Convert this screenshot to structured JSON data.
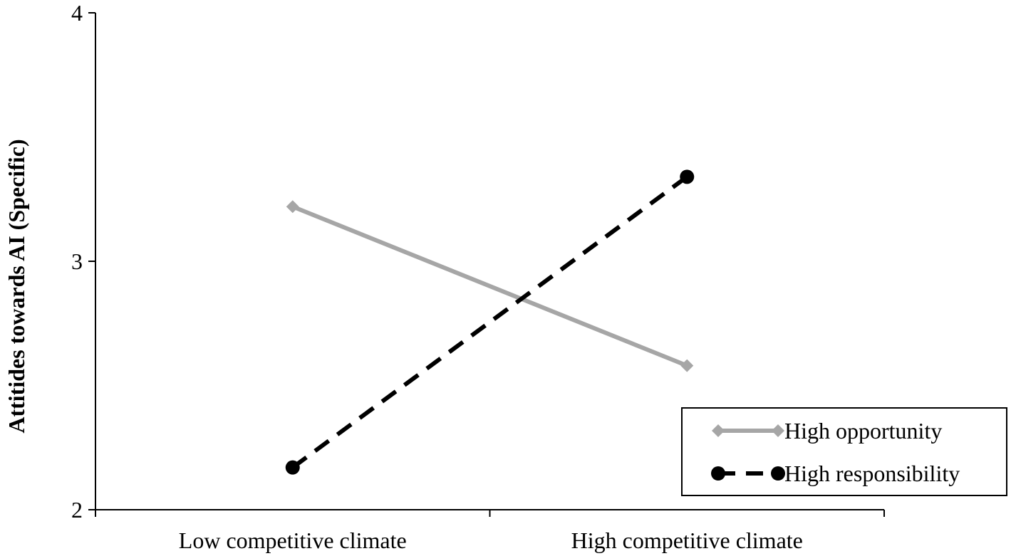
{
  "chart_data": {
    "type": "line",
    "categories": [
      "Low competitive climate",
      "High competitive climate"
    ],
    "ylabel": "Attitides towards AI (Specific)",
    "xlabel": "",
    "ylim": [
      2,
      4
    ],
    "yticks": [
      "2",
      "3",
      "4"
    ],
    "grid": false,
    "legend_position": "bottom-right",
    "series": [
      {
        "name": "High opportunity",
        "values": [
          3.22,
          2.58
        ],
        "color": "#a6a6a6",
        "line_style": "solid",
        "marker": "diamond"
      },
      {
        "name": "High responsibility",
        "values": [
          2.17,
          3.34
        ],
        "color": "#000000",
        "line_style": "dashed",
        "marker": "circle"
      }
    ]
  }
}
